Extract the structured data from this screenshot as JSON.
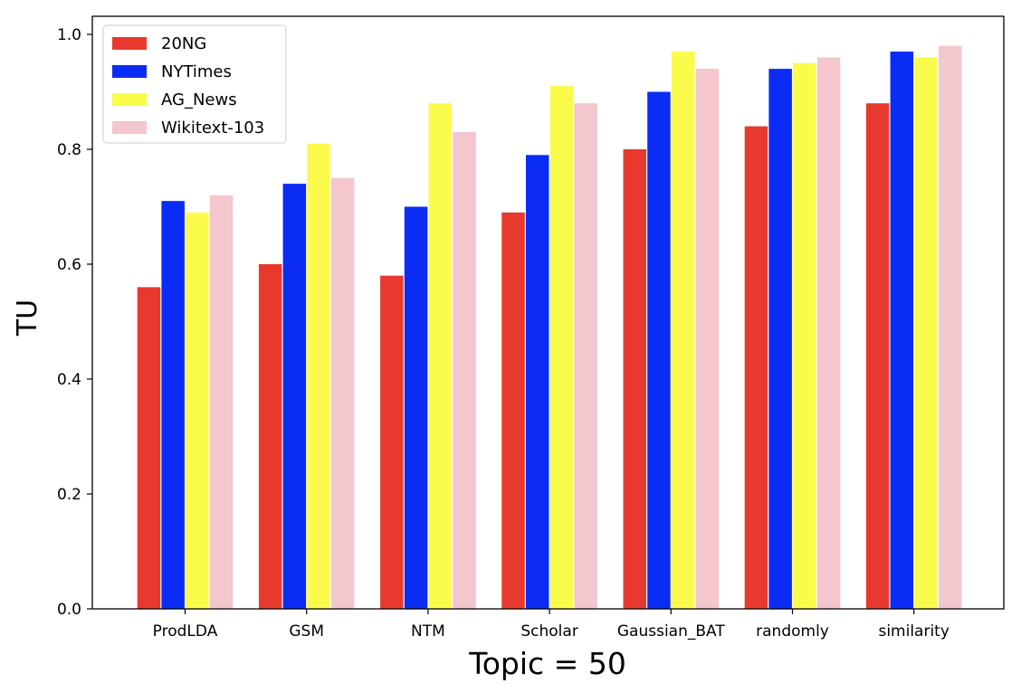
{
  "chart_data": {
    "type": "bar",
    "categories": [
      "ProdLDA",
      "GSM",
      "NTM",
      "Scholar",
      "Gaussian_BAT",
      "randomly",
      "similarity"
    ],
    "series": [
      {
        "name": "20NG",
        "color": "#e8392e",
        "values": [
          0.56,
          0.6,
          0.58,
          0.69,
          0.8,
          0.84,
          0.88
        ]
      },
      {
        "name": "NYTimes",
        "color": "#0a2cf5",
        "values": [
          0.71,
          0.74,
          0.7,
          0.79,
          0.9,
          0.94,
          0.97
        ]
      },
      {
        "name": "AG_News",
        "color": "#fbfb4c",
        "values": [
          0.69,
          0.81,
          0.88,
          0.91,
          0.97,
          0.95,
          0.96
        ]
      },
      {
        "name": "Wikitext-103",
        "color": "#f4c6cd",
        "values": [
          0.72,
          0.75,
          0.83,
          0.88,
          0.94,
          0.96,
          0.98
        ]
      }
    ],
    "xlabel": "Topic = 50",
    "ylabel": "TU",
    "ylim": [
      0,
      1.0
    ],
    "yticks": [
      "0.0",
      "0.2",
      "0.4",
      "0.6",
      "0.8",
      "1.0"
    ],
    "legend": "top-left",
    "grid": false
  }
}
